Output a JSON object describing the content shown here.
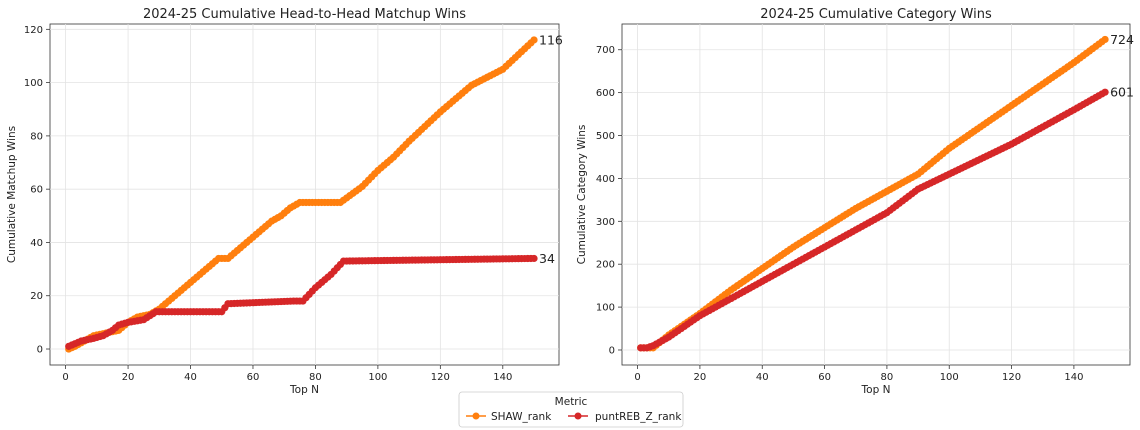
{
  "chart_data": [
    {
      "type": "line",
      "title": "2024-25 Cumulative Head-to-Head Matchup Wins",
      "xlabel": "Top N",
      "ylabel": "Cumulative Matchup Wins",
      "xlim": [
        -5,
        158
      ],
      "ylim": [
        -6,
        122
      ],
      "xticks": [
        "0",
        "20",
        "40",
        "60",
        "80",
        "100",
        "120",
        "140"
      ],
      "yticks": [
        "0",
        "20",
        "40",
        "60",
        "80",
        "100",
        "120"
      ],
      "grid": true,
      "series": [
        {
          "name": "SHAW_rank",
          "color": "#ff7f0e",
          "end_label": "116",
          "points": [
            [
              1,
              0
            ],
            [
              3,
              1
            ],
            [
              6,
              3
            ],
            [
              9,
              5
            ],
            [
              13,
              6
            ],
            [
              17,
              7
            ],
            [
              20,
              10
            ],
            [
              23,
              12
            ],
            [
              27,
              13
            ],
            [
              30,
              15
            ],
            [
              35,
              20
            ],
            [
              40,
              25
            ],
            [
              45,
              30
            ],
            [
              49,
              34
            ],
            [
              52,
              34
            ],
            [
              56,
              38
            ],
            [
              61,
              43
            ],
            [
              66,
              48
            ],
            [
              69,
              50
            ],
            [
              72,
              53
            ],
            [
              75,
              55
            ],
            [
              88,
              55
            ],
            [
              95,
              61
            ],
            [
              100,
              67
            ],
            [
              105,
              72
            ],
            [
              110,
              78
            ],
            [
              120,
              89
            ],
            [
              130,
              99
            ],
            [
              140,
              105
            ],
            [
              150,
              116
            ]
          ]
        },
        {
          "name": "puntREB_Z_rank",
          "color": "#d62728",
          "end_label": "34",
          "points": [
            [
              1,
              1
            ],
            [
              5,
              3
            ],
            [
              9,
              4
            ],
            [
              12,
              5
            ],
            [
              15,
              7
            ],
            [
              17,
              9
            ],
            [
              20,
              10
            ],
            [
              25,
              11
            ],
            [
              29,
              14
            ],
            [
              50,
              14
            ],
            [
              52,
              17
            ],
            [
              73,
              18
            ],
            [
              76,
              18
            ],
            [
              80,
              23
            ],
            [
              85,
              28
            ],
            [
              89,
              33
            ],
            [
              150,
              34
            ]
          ]
        }
      ]
    },
    {
      "type": "line",
      "title": "2024-25 Cumulative Category Wins",
      "xlabel": "Top N",
      "ylabel": "Cumulative Category Wins",
      "xlim": [
        -5,
        158
      ],
      "ylim": [
        -35,
        760
      ],
      "xticks": [
        "0",
        "20",
        "40",
        "60",
        "80",
        "100",
        "120",
        "140"
      ],
      "yticks": [
        "0",
        "100",
        "200",
        "300",
        "400",
        "500",
        "600",
        "700"
      ],
      "grid": true,
      "series": [
        {
          "name": "SHAW_rank",
          "color": "#ff7f0e",
          "end_label": "724",
          "points": [
            [
              1,
              5
            ],
            [
              5,
              5
            ],
            [
              10,
              35
            ],
            [
              20,
              85
            ],
            [
              30,
              140
            ],
            [
              40,
              190
            ],
            [
              50,
              240
            ],
            [
              60,
              285
            ],
            [
              70,
              330
            ],
            [
              80,
              370
            ],
            [
              90,
              410
            ],
            [
              100,
              470
            ],
            [
              110,
              520
            ],
            [
              120,
              570
            ],
            [
              130,
              620
            ],
            [
              140,
              670
            ],
            [
              150,
              724
            ]
          ]
        },
        {
          "name": "puntREB_Z_rank",
          "color": "#d62728",
          "end_label": "601",
          "points": [
            [
              1,
              5
            ],
            [
              3,
              5
            ],
            [
              5,
              10
            ],
            [
              10,
              30
            ],
            [
              20,
              80
            ],
            [
              30,
              120
            ],
            [
              40,
              160
            ],
            [
              50,
              200
            ],
            [
              60,
              240
            ],
            [
              70,
              280
            ],
            [
              80,
              320
            ],
            [
              90,
              375
            ],
            [
              100,
              410
            ],
            [
              110,
              445
            ],
            [
              120,
              480
            ],
            [
              130,
              520
            ],
            [
              140,
              560
            ],
            [
              150,
              601
            ]
          ]
        }
      ]
    }
  ],
  "legend": {
    "title": "Metric",
    "items": [
      {
        "label": "SHAW_rank",
        "color": "#ff7f0e"
      },
      {
        "label": "puntREB_Z_rank",
        "color": "#d62728"
      }
    ]
  }
}
